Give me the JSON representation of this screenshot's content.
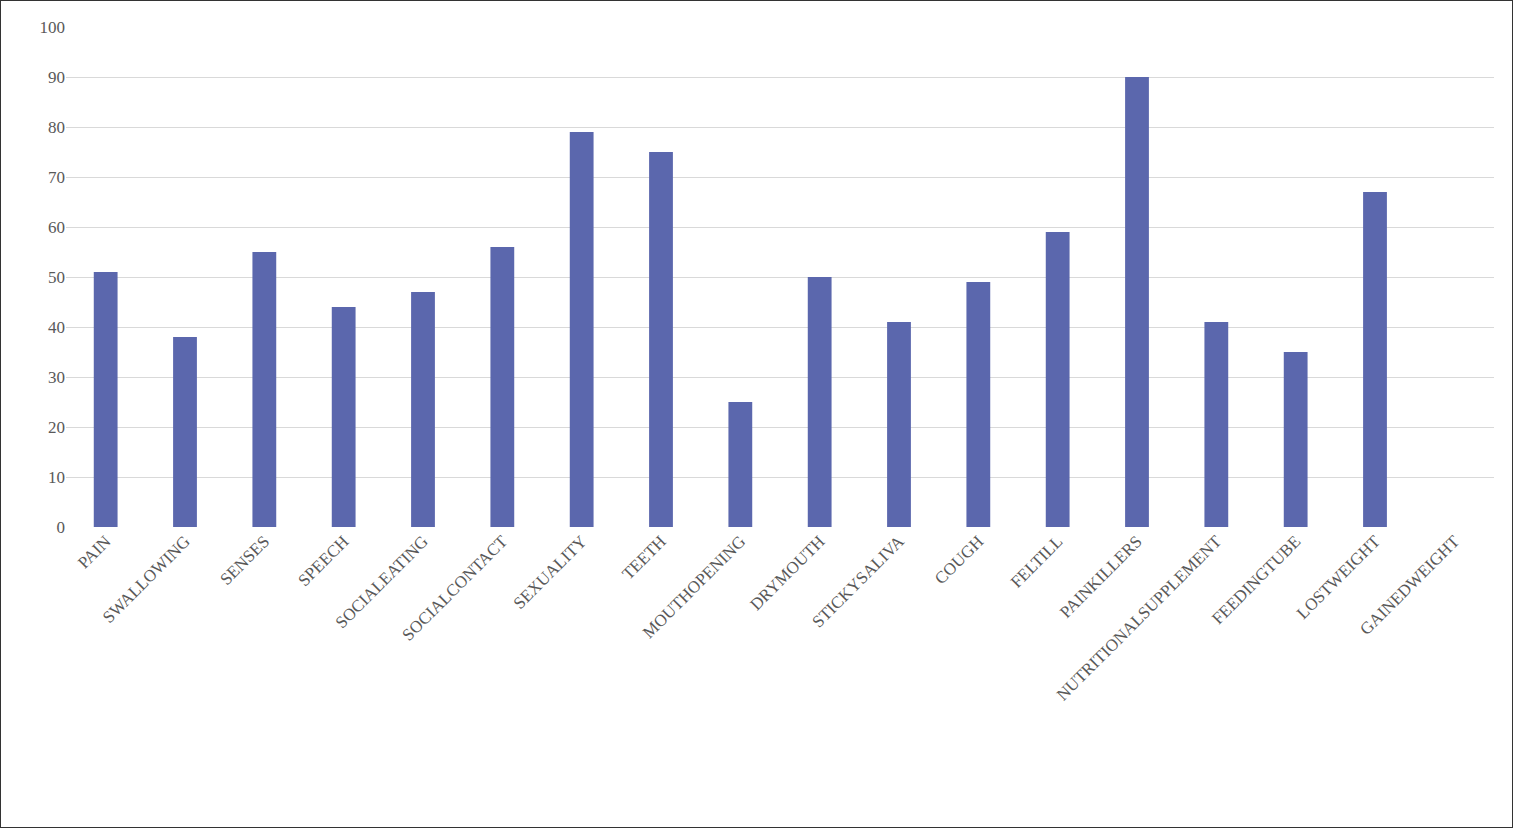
{
  "chart_data": {
    "type": "bar",
    "categories": [
      "PAIN",
      "SWALLOWING",
      "SENSES",
      "SPEECH",
      "SOCIALEATING",
      "SOCIALCONTACT",
      "SEXUALITY",
      "TEETH",
      "MOUTHOPENING",
      "DRYMOUTH",
      "STICKYSALIVA",
      "COUGH",
      "FELTILL",
      "PAINKILLERS",
      "NUTRITIONALSUPPLEMENT",
      "FEEDINGTUBE",
      "LOSTWEIGHT",
      "GAINEDWEIGHT"
    ],
    "values": [
      51,
      38,
      55,
      44,
      47,
      56,
      79,
      75,
      25,
      50,
      41,
      49,
      59,
      90,
      41,
      35,
      67,
      0
    ],
    "color": "#5b67ad",
    "ylim": [
      0,
      100
    ],
    "yticks": [
      0,
      10,
      20,
      30,
      40,
      50,
      60,
      70,
      80,
      90,
      100
    ],
    "grid": true
  }
}
